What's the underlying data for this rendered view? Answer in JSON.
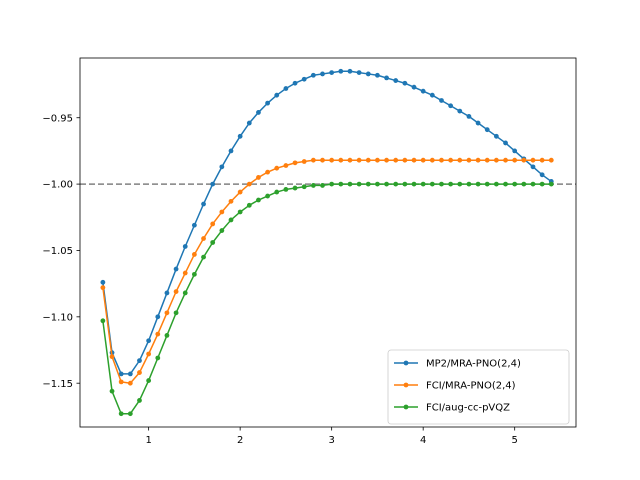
{
  "chart_data": {
    "type": "line",
    "title": "",
    "xlabel": "",
    "ylabel": "",
    "xlim": [
      0.25,
      5.67
    ],
    "ylim": [
      -1.183,
      -0.905
    ],
    "xticks": [
      1,
      2,
      3,
      4,
      5
    ],
    "yticks": [
      -0.95,
      -1.0,
      -1.05,
      -1.1,
      -1.15
    ],
    "xtick_labels": [
      "1",
      "2",
      "3",
      "4",
      "5"
    ],
    "ytick_labels": [
      "−0.95",
      "−1.00",
      "−1.05",
      "−1.10",
      "−1.15"
    ],
    "grid": false,
    "legend_position": "lower right",
    "reference_line": {
      "y": -1.0,
      "style": "dashed",
      "color": "#808080"
    },
    "series": [
      {
        "name": "MP2/MRA-PNO(2,4)",
        "color": "#1f77b4",
        "x": [
          0.5,
          0.6,
          0.7,
          0.8,
          0.9,
          1.0,
          1.1,
          1.2,
          1.3,
          1.4,
          1.5,
          1.6,
          1.7,
          1.8,
          1.9,
          2.0,
          2.1,
          2.2,
          2.3,
          2.4,
          2.5,
          2.6,
          2.7,
          2.8,
          2.9,
          3.0,
          3.1,
          3.2,
          3.3,
          3.4,
          3.5,
          3.6,
          3.7,
          3.8,
          3.9,
          4.0,
          4.1,
          4.2,
          4.3,
          4.4,
          4.5,
          4.6,
          4.7,
          4.8,
          4.9,
          5.0,
          5.1,
          5.2,
          5.3,
          5.4
        ],
        "y": [
          -1.074,
          -1.127,
          -1.143,
          -1.143,
          -1.133,
          -1.118,
          -1.1,
          -1.082,
          -1.064,
          -1.047,
          -1.031,
          -1.015,
          -1.0,
          -0.987,
          -0.975,
          -0.964,
          -0.954,
          -0.946,
          -0.939,
          -0.933,
          -0.928,
          -0.924,
          -0.921,
          -0.918,
          -0.917,
          -0.916,
          -0.915,
          -0.915,
          -0.916,
          -0.917,
          -0.918,
          -0.92,
          -0.922,
          -0.924,
          -0.927,
          -0.93,
          -0.933,
          -0.937,
          -0.941,
          -0.945,
          -0.949,
          -0.954,
          -0.959,
          -0.964,
          -0.969,
          -0.975,
          -0.981,
          -0.987,
          -0.993,
          -0.998
        ]
      },
      {
        "name": "FCI/MRA-PNO(2,4)",
        "color": "#ff7f0e",
        "x": [
          0.5,
          0.6,
          0.7,
          0.8,
          0.9,
          1.0,
          1.1,
          1.2,
          1.3,
          1.4,
          1.5,
          1.6,
          1.7,
          1.8,
          1.9,
          2.0,
          2.1,
          2.2,
          2.3,
          2.4,
          2.5,
          2.6,
          2.7,
          2.8,
          2.9,
          3.0,
          3.1,
          3.2,
          3.3,
          3.4,
          3.5,
          3.6,
          3.7,
          3.8,
          3.9,
          4.0,
          4.1,
          4.2,
          4.3,
          4.4,
          4.5,
          4.6,
          4.7,
          4.8,
          4.9,
          5.0,
          5.1,
          5.2,
          5.3,
          5.4
        ],
        "y": [
          -1.078,
          -1.13,
          -1.149,
          -1.15,
          -1.142,
          -1.128,
          -1.113,
          -1.097,
          -1.081,
          -1.067,
          -1.053,
          -1.041,
          -1.03,
          -1.021,
          -1.013,
          -1.006,
          -1.0,
          -0.995,
          -0.991,
          -0.988,
          -0.986,
          -0.984,
          -0.983,
          -0.982,
          -0.982,
          -0.982,
          -0.982,
          -0.982,
          -0.982,
          -0.982,
          -0.982,
          -0.982,
          -0.982,
          -0.982,
          -0.982,
          -0.982,
          -0.982,
          -0.982,
          -0.982,
          -0.982,
          -0.982,
          -0.982,
          -0.982,
          -0.982,
          -0.982,
          -0.982,
          -0.982,
          -0.982,
          -0.982,
          -0.982
        ]
      },
      {
        "name": "FCI/aug-cc-pVQZ",
        "color": "#2ca02c",
        "x": [
          0.5,
          0.6,
          0.7,
          0.8,
          0.9,
          1.0,
          1.1,
          1.2,
          1.3,
          1.4,
          1.5,
          1.6,
          1.7,
          1.8,
          1.9,
          2.0,
          2.1,
          2.2,
          2.3,
          2.4,
          2.5,
          2.6,
          2.7,
          2.8,
          2.9,
          3.0,
          3.1,
          3.2,
          3.3,
          3.4,
          3.5,
          3.6,
          3.7,
          3.8,
          3.9,
          4.0,
          4.1,
          4.2,
          4.3,
          4.4,
          4.5,
          4.6,
          4.7,
          4.8,
          4.9,
          5.0,
          5.1,
          5.2,
          5.3,
          5.4
        ],
        "y": [
          -1.103,
          -1.156,
          -1.173,
          -1.173,
          -1.163,
          -1.148,
          -1.131,
          -1.114,
          -1.097,
          -1.082,
          -1.068,
          -1.055,
          -1.044,
          -1.035,
          -1.027,
          -1.021,
          -1.016,
          -1.012,
          -1.009,
          -1.006,
          -1.004,
          -1.003,
          -1.002,
          -1.001,
          -1.001,
          -1.0,
          -1.0,
          -1.0,
          -1.0,
          -1.0,
          -1.0,
          -1.0,
          -1.0,
          -1.0,
          -1.0,
          -1.0,
          -1.0,
          -1.0,
          -1.0,
          -1.0,
          -1.0,
          -1.0,
          -1.0,
          -1.0,
          -1.0,
          -1.0,
          -1.0,
          -1.0,
          -1.0,
          -1.0
        ]
      }
    ]
  }
}
